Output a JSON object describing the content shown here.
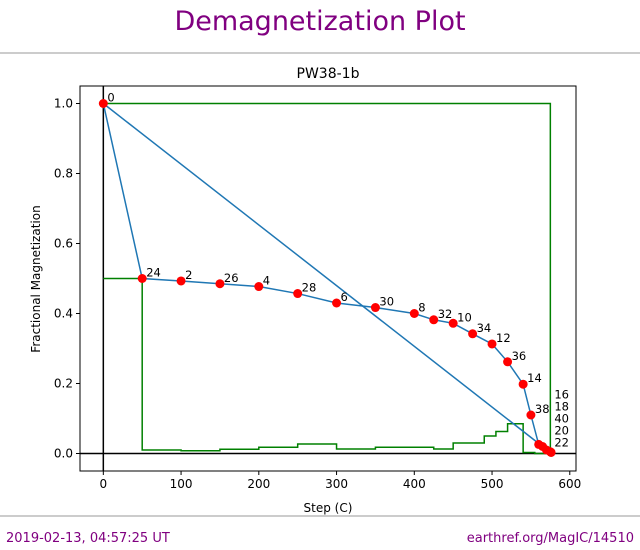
{
  "header": {
    "title": "Demagnetization Plot"
  },
  "footer": {
    "timestamp": "2019-02-13, 04:57:25 UT",
    "link": "earthref.org/MagIC/14510"
  },
  "chart_data": {
    "type": "line",
    "title": "PW38-1b",
    "xlabel": "Step (C)",
    "ylabel": "Fractional Magnetization",
    "xlim": [
      -30,
      608
    ],
    "ylim": [
      -0.05,
      1.05
    ],
    "xticks": [
      0,
      100,
      200,
      300,
      400,
      500,
      600
    ],
    "yticks": [
      0.0,
      0.2,
      0.4,
      0.6,
      0.8,
      1.0
    ],
    "grid": false,
    "colors": {
      "magnetization": "#1f77b4",
      "points": "#ff0000",
      "vds": "#008000"
    },
    "points": [
      {
        "label": "0",
        "x": 0,
        "y": 1.0
      },
      {
        "label": "24",
        "x": 50,
        "y": 0.5
      },
      {
        "label": "2",
        "x": 100,
        "y": 0.493
      },
      {
        "label": "26",
        "x": 150,
        "y": 0.485
      },
      {
        "label": "4",
        "x": 200,
        "y": 0.477
      },
      {
        "label": "28",
        "x": 250,
        "y": 0.457
      },
      {
        "label": "6",
        "x": 300,
        "y": 0.43
      },
      {
        "label": "30",
        "x": 350,
        "y": 0.417
      },
      {
        "label": "8",
        "x": 400,
        "y": 0.4
      },
      {
        "label": "32",
        "x": 425,
        "y": 0.382
      },
      {
        "label": "10",
        "x": 450,
        "y": 0.372
      },
      {
        "label": "34",
        "x": 475,
        "y": 0.342
      },
      {
        "label": "12",
        "x": 500,
        "y": 0.313
      },
      {
        "label": "36",
        "x": 520,
        "y": 0.262
      },
      {
        "label": "14",
        "x": 540,
        "y": 0.198
      },
      {
        "label": "38",
        "x": 550,
        "y": 0.11
      },
      {
        "label": "16",
        "x": 560,
        "y": 0.026
      },
      {
        "label": "18",
        "x": 565,
        "y": 0.02
      },
      {
        "label": "40",
        "x": 570,
        "y": 0.01
      },
      {
        "label": "20",
        "x": 575,
        "y": 0.005
      },
      {
        "label": "22",
        "x": 576,
        "y": 0.003
      }
    ],
    "extra_line": [
      [
        0,
        1.0
      ],
      [
        565,
        0.02
      ]
    ],
    "green_steps": [
      [
        0,
        0.5
      ],
      [
        50,
        0.5
      ],
      [
        50,
        0.01
      ],
      [
        100,
        0.01
      ],
      [
        100,
        0.008
      ],
      [
        150,
        0.008
      ],
      [
        150,
        0.012
      ],
      [
        200,
        0.012
      ],
      [
        200,
        0.018
      ],
      [
        250,
        0.018
      ],
      [
        250,
        0.027
      ],
      [
        300,
        0.027
      ],
      [
        300,
        0.013
      ],
      [
        350,
        0.013
      ],
      [
        350,
        0.018
      ],
      [
        425,
        0.018
      ],
      [
        425,
        0.013
      ],
      [
        450,
        0.013
      ],
      [
        450,
        0.03
      ],
      [
        490,
        0.03
      ],
      [
        490,
        0.05
      ],
      [
        505,
        0.05
      ],
      [
        505,
        0.063
      ],
      [
        520,
        0.063
      ],
      [
        520,
        0.085
      ],
      [
        540,
        0.085
      ],
      [
        540,
        0.003
      ],
      [
        555,
        0.003
      ],
      [
        555,
        0.0
      ],
      [
        575,
        0.0
      ],
      [
        575,
        1.0
      ],
      [
        0,
        1.0
      ]
    ]
  }
}
